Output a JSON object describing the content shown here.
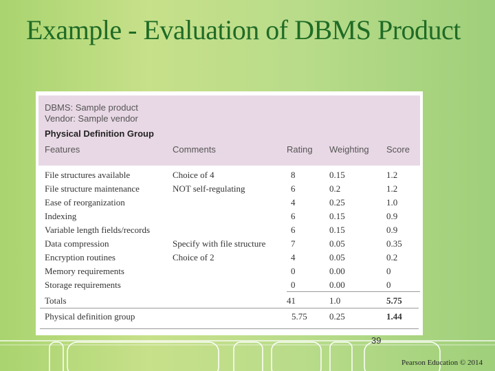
{
  "slide": {
    "title": "Example - Evaluation of DBMS Product",
    "page_number": "39",
    "copyright": "Pearson Education © 2014"
  },
  "table": {
    "dbms_line": "DBMS:  Sample product",
    "vendor_line": "Vendor: Sample vendor",
    "group_title": "Physical Definition Group",
    "columns": [
      "Features",
      "Comments",
      "Rating",
      "Weighting",
      "Score"
    ],
    "rows": [
      {
        "feature": "File structures available",
        "comment": "Choice of 4",
        "rating": "8",
        "weighting": "0.15",
        "score": "1.2"
      },
      {
        "feature": "File structure maintenance",
        "comment": "NOT self-regulating",
        "rating": "6",
        "weighting": "0.2",
        "score": "1.2"
      },
      {
        "feature": "Ease of reorganization",
        "comment": "",
        "rating": "4",
        "weighting": "0.25",
        "score": "1.0"
      },
      {
        "feature": "Indexing",
        "comment": "",
        "rating": "6",
        "weighting": "0.15",
        "score": "0.9"
      },
      {
        "feature": "Variable length fields/records",
        "comment": "",
        "rating": "6",
        "weighting": "0.15",
        "score": "0.9"
      },
      {
        "feature": "Data compression",
        "comment": "Specify with file structure",
        "rating": "7",
        "weighting": "0.05",
        "score": "0.35"
      },
      {
        "feature": "Encryption routines",
        "comment": "Choice of 2",
        "rating": "4",
        "weighting": "0.05",
        "score": "0.2"
      },
      {
        "feature": "Memory requirements",
        "comment": "",
        "rating": "0",
        "weighting": "0.00",
        "score": "0"
      },
      {
        "feature": "Storage requirements",
        "comment": "",
        "rating": "0",
        "weighting": "0.00",
        "score": "0"
      }
    ],
    "totals": {
      "label": "Totals",
      "rating": "41",
      "weighting": "1.0",
      "score": "5.75"
    },
    "group_summary": {
      "label": "Physical definition group",
      "rating": "5.75",
      "weighting": "0.25",
      "score": "1.44"
    }
  }
}
